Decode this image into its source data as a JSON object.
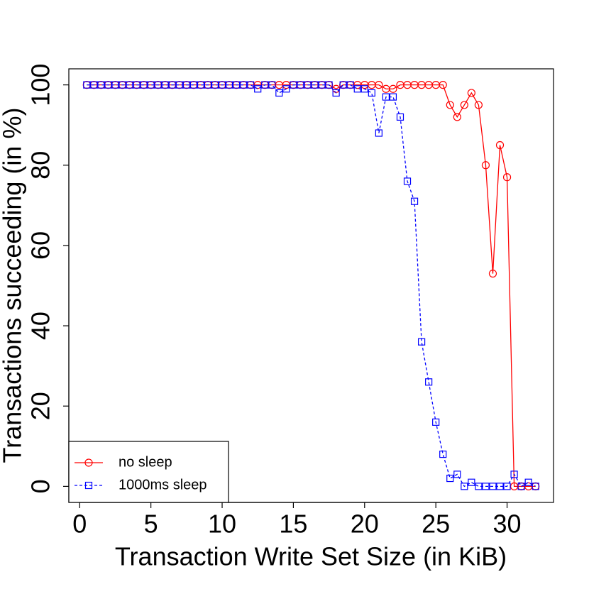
{
  "chart_data": {
    "type": "line",
    "xlabel": "Transaction Write Set Size (in KiB)",
    "ylabel": "Transactions succeeding (in %)",
    "x": [
      0.5,
      1,
      1.5,
      2,
      2.5,
      3,
      3.5,
      4,
      4.5,
      5,
      5.5,
      6,
      6.5,
      7,
      7.5,
      8,
      8.5,
      9,
      9.5,
      10,
      10.5,
      11,
      11.5,
      12,
      12.5,
      13,
      13.5,
      14,
      14.5,
      15,
      15.5,
      16,
      16.5,
      17,
      17.5,
      18,
      18.5,
      19,
      19.5,
      20,
      20.5,
      21,
      21.5,
      22,
      22.5,
      23,
      23.5,
      24,
      24.5,
      25,
      25.5,
      26,
      26.5,
      27,
      27.5,
      28,
      28.5,
      29,
      29.5,
      30,
      30.5,
      31,
      31.5,
      32
    ],
    "series": [
      {
        "name": "no sleep",
        "color": "#ff0000",
        "marker": "circle",
        "dash": "solid",
        "values": [
          100,
          100,
          100,
          100,
          100,
          100,
          100,
          100,
          100,
          100,
          100,
          100,
          100,
          100,
          100,
          100,
          100,
          100,
          100,
          100,
          100,
          100,
          100,
          100,
          100,
          100,
          100,
          100,
          100,
          100,
          100,
          100,
          100,
          100,
          100,
          99,
          100,
          100,
          100,
          100,
          100,
          100,
          99,
          99,
          100,
          100,
          100,
          100,
          100,
          100,
          100,
          95,
          92,
          95,
          98,
          95,
          80,
          53,
          85,
          77,
          0,
          0,
          0,
          0
        ]
      },
      {
        "name": "1000ms sleep",
        "color": "#0000ff",
        "marker": "square",
        "dash": "dashed",
        "values": [
          100,
          100,
          100,
          100,
          100,
          100,
          100,
          100,
          100,
          100,
          100,
          100,
          100,
          100,
          100,
          100,
          100,
          100,
          100,
          100,
          100,
          100,
          100,
          100,
          99,
          100,
          100,
          98,
          99,
          100,
          100,
          100,
          100,
          100,
          100,
          98,
          100,
          100,
          99,
          99,
          98,
          88,
          97,
          97,
          92,
          76,
          71,
          36,
          26,
          16,
          8,
          2,
          3,
          0,
          1,
          0,
          0,
          0,
          0,
          0,
          3,
          0,
          1,
          0
        ]
      }
    ],
    "xlim": [
      -0.76,
      33.26
    ],
    "ylim": [
      -4,
      104
    ],
    "xticks": [
      0,
      5,
      10,
      15,
      20,
      25,
      30
    ],
    "yticks": [
      0,
      20,
      40,
      60,
      80,
      100
    ],
    "legend": "bottom-left"
  }
}
